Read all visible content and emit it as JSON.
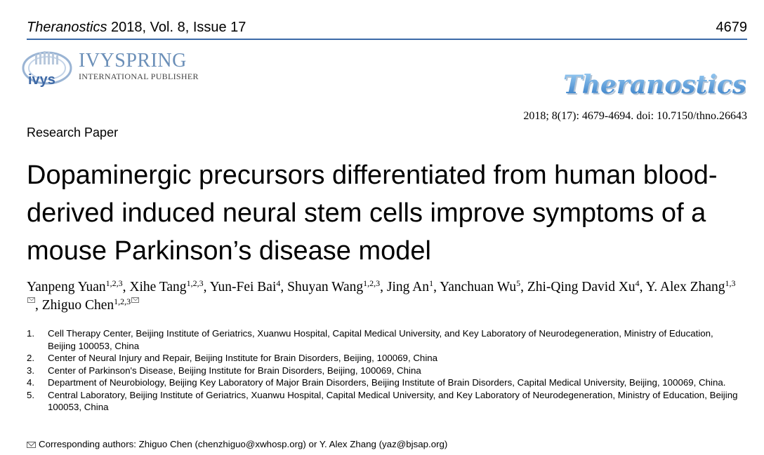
{
  "header": {
    "journal_name": "Theranostics",
    "journal_rest": " 2018, Vol. 8, Issue 17",
    "page_number": "4679"
  },
  "publisher": {
    "name": "IVYSPRING",
    "subtitle": "INTERNATIONAL PUBLISHER",
    "logo_text": "ivys"
  },
  "journal_logo": "Theranostics",
  "citation": "2018; 8(17): 4679-4694. doi: 10.7150/thno.26643",
  "article_type": "Research Paper",
  "title": "Dopaminergic precursors differentiated from human blood-derived induced neural stem cells improve symptoms of a mouse Parkinson’s disease model",
  "authors": [
    {
      "name": "Yanpeng Yuan",
      "aff": "1,2,3",
      "sep": ", "
    },
    {
      "name": "Xihe Tang",
      "aff": "1,2,3",
      "sep": ", "
    },
    {
      "name": "Yun-Fei Bai",
      "aff": "4",
      "sep": ", "
    },
    {
      "name": "Shuyan Wang",
      "aff": "1,2,3",
      "sep": ", "
    },
    {
      "name": "Jing An",
      "aff": "1",
      "sep": ", "
    },
    {
      "name": "Yanchuan Wu",
      "aff": "5",
      "sep": ", "
    },
    {
      "name": "Zhi-Qing David Xu",
      "aff": "4",
      "sep": ", "
    },
    {
      "name": "Y. Alex Zhang",
      "aff": "1,3",
      "sep": ", "
    },
    {
      "name": "Zhiguo Chen",
      "aff": "1,2,3",
      "sep": ""
    }
  ],
  "affiliations": [
    {
      "num": "1.",
      "text": "Cell Therapy Center, Beijing Institute of Geriatrics, Xuanwu Hospital, Capital Medical University, and Key Laboratory of Neurodegeneration, Ministry of Education, Beijing 100053, China"
    },
    {
      "num": "2.",
      "text": "Center of Neural Injury and Repair, Beijing Institute for Brain Disorders, Beijing, 100069, China"
    },
    {
      "num": "3.",
      "text": "Center of Parkinson's Disease, Beijing Institute for Brain Disorders, Beijing, 100069, China"
    },
    {
      "num": "4.",
      "text": "Department of Neurobiology, Beijing Key Laboratory of Major Brain Disorders, Beijing Institute of Brain Disorders, Capital Medical University, Beijing, 100069, China."
    },
    {
      "num": "5.",
      "text": "Central Laboratory, Beijing Institute of Geriatrics, Xuanwu Hospital, Capital Medical University, and Key Laboratory of Neurodegeneration, Ministry of Education, Beijing 100053, China"
    }
  ],
  "corresponding": "Corresponding authors: Zhiguo Chen (chenzhiguo@xwhosp.org) or Y. Alex Zhang (yaz@bjsap.org)",
  "colors": {
    "rule": "#3b6aa8",
    "ivy_text": "#6b8fb8",
    "thera_logo": "#5a9bd4"
  }
}
